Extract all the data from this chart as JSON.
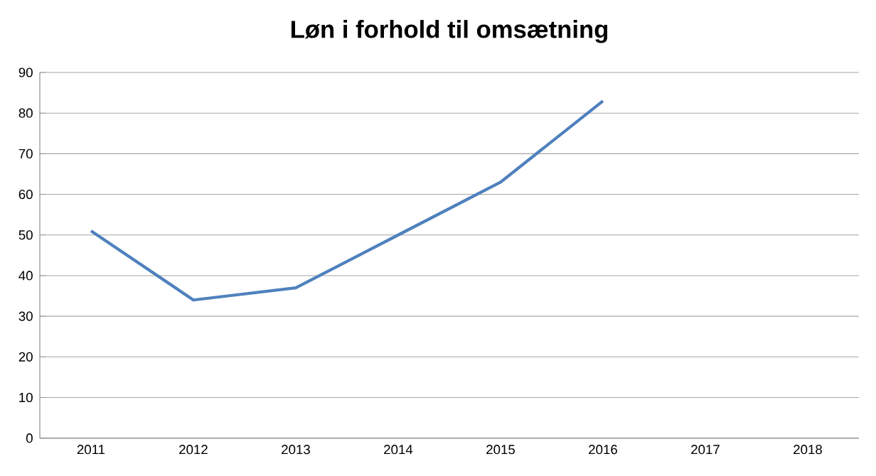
{
  "chart_data": {
    "type": "line",
    "title": "Løn i forhold til omsætning",
    "categories": [
      "2011",
      "2012",
      "2013",
      "2014",
      "2015",
      "2016",
      "2017",
      "2018"
    ],
    "series": [
      {
        "color": "#4f81bd",
        "values": [
          51,
          34,
          37,
          50,
          63,
          83,
          null,
          null
        ]
      }
    ],
    "ylim": [
      0,
      90
    ],
    "yticks": [
      0,
      10,
      20,
      30,
      40,
      50,
      60,
      70,
      80,
      90
    ],
    "grid": "y",
    "marker": "none",
    "line_style": "solid"
  }
}
